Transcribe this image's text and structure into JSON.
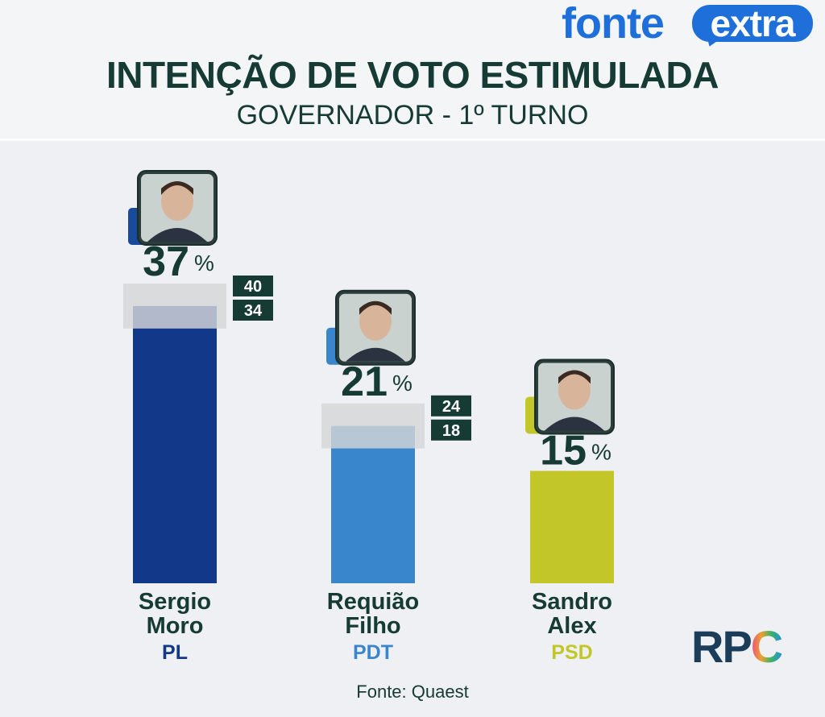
{
  "brand": {
    "name_part1": "fonte",
    "name_part2": "extra"
  },
  "header": {
    "title": "INTENÇÃO DE VOTO ESTIMULADA",
    "subtitle": "GOVERNADOR - 1º TURNO"
  },
  "source": "Fonte: Quaest",
  "broadcaster": {
    "logo_text_rp": "RP",
    "logo_text_c": "C"
  },
  "colors": {
    "moro": "#12388a",
    "requiao": "#3a86cc",
    "sandro": "#c3c629",
    "ink": "#163a34"
  },
  "chart_data": {
    "type": "bar",
    "title": "INTENÇÃO DE VOTO ESTIMULADA",
    "subtitle": "GOVERNADOR - 1º TURNO",
    "unit": "%",
    "ylim": [
      0,
      40
    ],
    "grid": false,
    "categories": [
      "Sergio Moro",
      "Requião Filho",
      "Sandro Alex"
    ],
    "bars": [
      {
        "name_line1": "Sergio",
        "name_line2": "Moro",
        "party": "PL",
        "value": 37,
        "range_high": 40,
        "range_low": 34,
        "color": "#12388a",
        "party_color": "#12388a",
        "avatar_accent": "#1a4a9a"
      },
      {
        "name_line1": "Requião",
        "name_line2": "Filho",
        "party": "PDT",
        "value": 21,
        "range_high": 24,
        "range_low": 18,
        "color": "#3a86cc",
        "party_color": "#3a86cc",
        "avatar_accent": "#3a86cc"
      },
      {
        "name_line1": "Sandro",
        "name_line2": "Alex",
        "party": "PSD",
        "value": 15,
        "color": "#c3c629",
        "party_color": "#c3c629",
        "avatar_accent": "#c3c629"
      }
    ]
  }
}
